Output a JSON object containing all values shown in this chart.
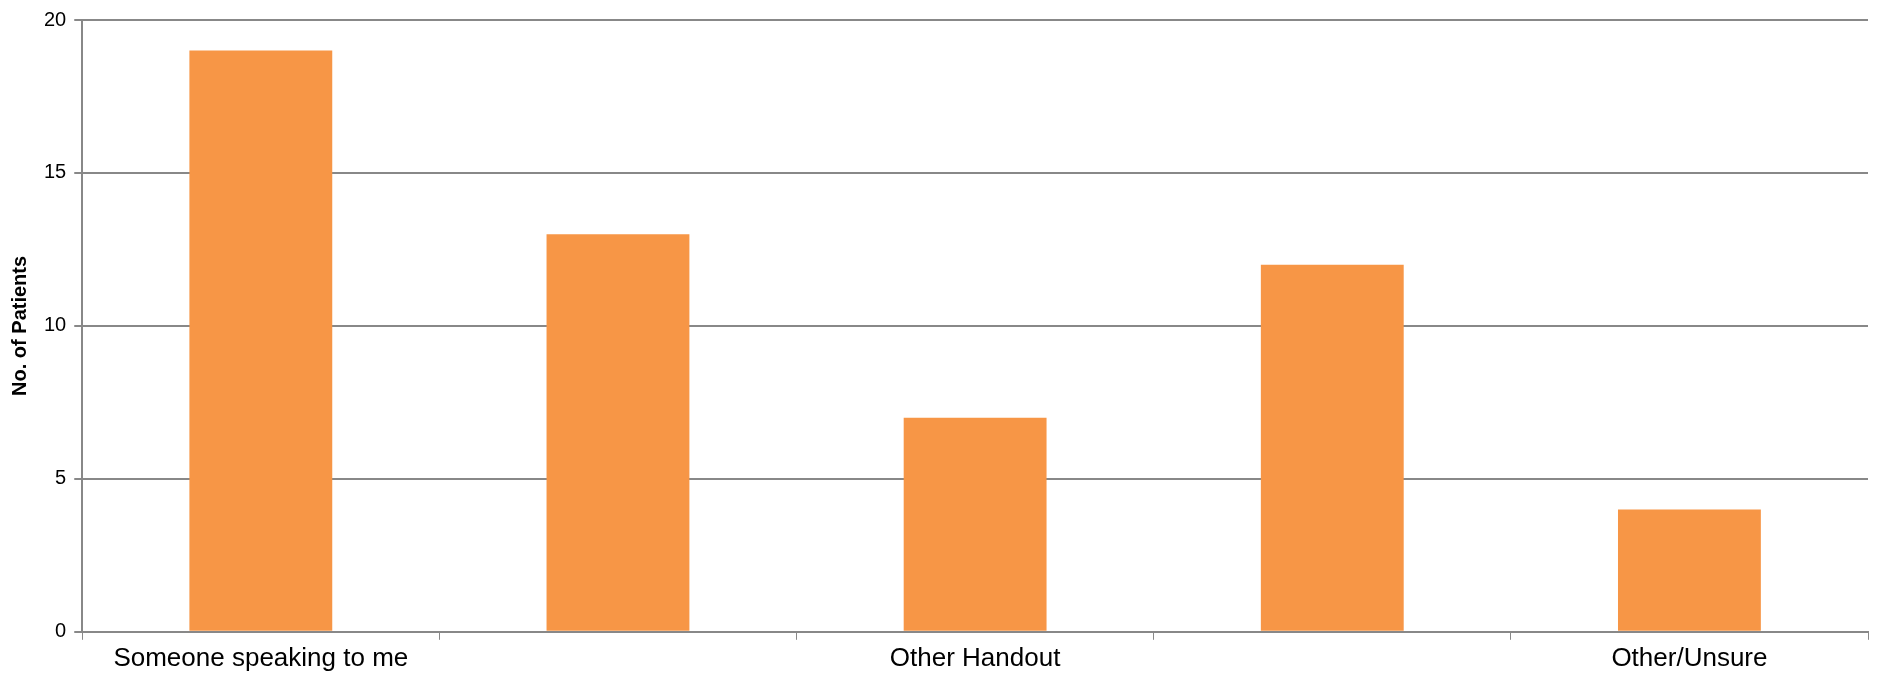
{
  "chart_data": {
    "type": "bar",
    "ylabel": "No. of Patients",
    "categories": [
      "Someone speaking to me",
      null,
      "Other Handout",
      null,
      "Other/Unsure"
    ],
    "values": [
      19,
      13,
      7,
      12,
      4
    ],
    "color": "#f79646",
    "ylim": [
      0,
      20
    ],
    "yticks": [
      0,
      5,
      10,
      15,
      20
    ],
    "grid": "y"
  }
}
